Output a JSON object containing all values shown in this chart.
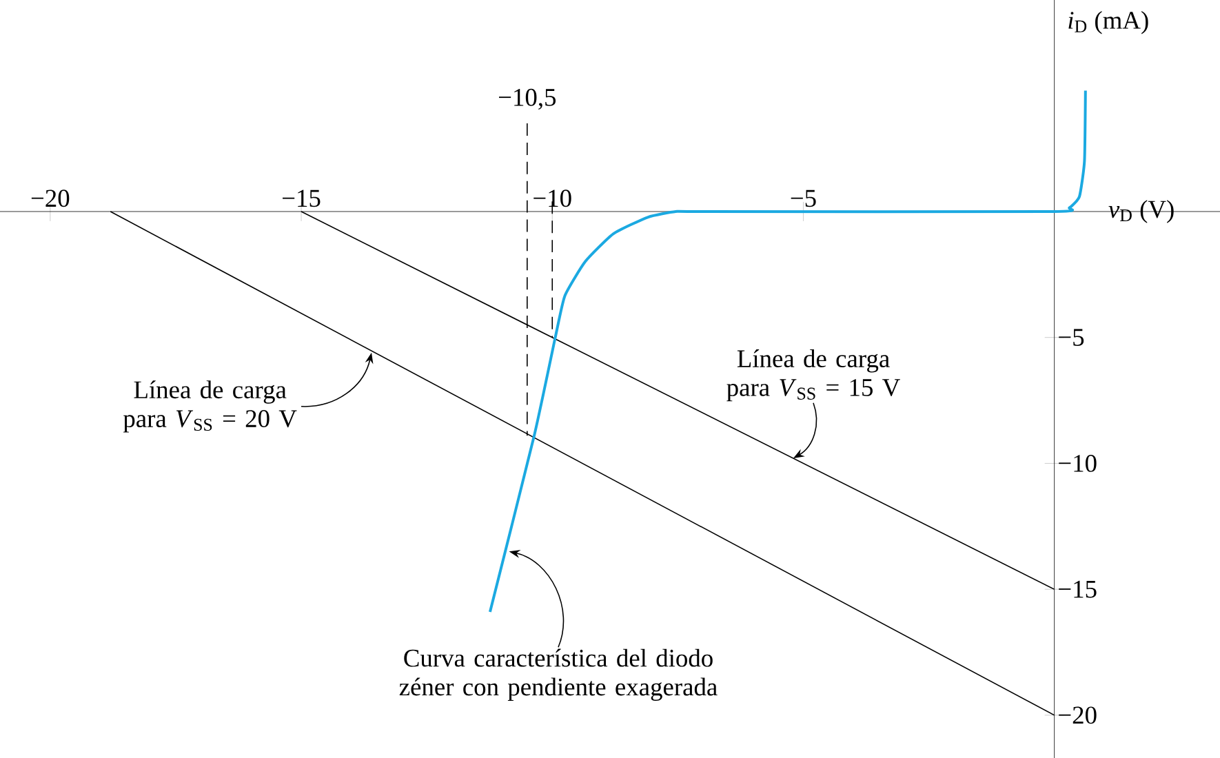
{
  "chart_data": {
    "type": "line",
    "xlabel": "*v*$_{D}$ (V)",
    "ylabel": "*i*$_{D}$ (mA)",
    "xlim": [
      -21,
      3.3
    ],
    "ylim": [
      -21.7,
      8.4
    ],
    "xticks": [
      {
        "value": -20,
        "label": "−20"
      },
      {
        "value": -15,
        "label": "−15"
      },
      {
        "value": -10,
        "label": "−10"
      },
      {
        "value": -5,
        "label": "−5"
      }
    ],
    "yticks": [
      {
        "value": -5,
        "label": "−5"
      },
      {
        "value": -10,
        "label": "−10"
      },
      {
        "value": -15,
        "label": "−15"
      },
      {
        "value": -20,
        "label": "−20"
      }
    ],
    "series": [
      {
        "color": "#000000",
        "x": [
          -18.8,
          0
        ],
        "values": [
          0,
          -20
        ]
      },
      {
        "color": "#000000",
        "x": [
          -15,
          0
        ],
        "values": [
          0,
          -15
        ]
      },
      {
        "color": "#1ba9e1",
        "x": [
          -11.24,
          -10.36,
          -9.94,
          -9.75,
          -9.34,
          -8.78,
          -8.09,
          -7.54,
          -7.0,
          0,
          0.3,
          0.5,
          0.6,
          0.62
        ],
        "values": [
          -15.9,
          -8.9,
          -5,
          -3.35,
          -1.98,
          -0.88,
          -0.22,
          0,
          0,
          0,
          0.15,
          0.6,
          2,
          4.8
        ]
      },
      {
        "color": "#000000",
        "line_style": "dashed",
        "x": [
          -10.5,
          -10.5
        ],
        "values": [
          3.5,
          -8.9
        ]
      },
      {
        "color": "#000000",
        "line_style": "dashed",
        "x": [
          -10,
          -10
        ],
        "values": [
          0.4,
          -5
        ]
      }
    ],
    "annotations": [
      {
        "text": "−10,5",
        "x": -10.5,
        "y": 3.7
      },
      {
        "text": "Línea de carga para *V*$_{SS}$ = 20 V",
        "x": -13.6,
        "y": -5.6
      },
      {
        "text": "Línea de carga para *V*$_{SS}$ = 15 V",
        "x": -5.2,
        "y": -9.8
      },
      {
        "text": "Curva característica del diodo zéner con pendiente exagerada",
        "x": -10.86,
        "y": -13.5
      }
    ]
  }
}
